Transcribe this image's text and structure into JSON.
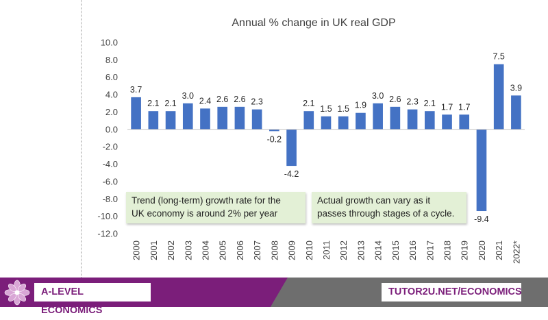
{
  "chart_data": {
    "type": "bar",
    "title": "Annual % change in UK real GDP",
    "categories": [
      "2000",
      "2001",
      "2002",
      "2003",
      "2004",
      "2005",
      "2006",
      "2007",
      "2008",
      "2009",
      "2010",
      "2011",
      "2012",
      "2013",
      "2014",
      "2015",
      "2016",
      "2017",
      "2018",
      "2019",
      "2020",
      "2021",
      "2022*"
    ],
    "values": [
      3.7,
      2.1,
      2.1,
      3.0,
      2.4,
      2.6,
      2.6,
      2.3,
      -0.2,
      -4.2,
      2.1,
      1.5,
      1.5,
      1.9,
      3.0,
      2.6,
      2.3,
      2.1,
      1.7,
      1.7,
      -9.4,
      7.5,
      3.9
    ],
    "data_labels": [
      "3.7",
      "2.1",
      "2.1",
      "3.0",
      "2.4",
      "2.6",
      "2.6",
      "2.3",
      "-0.2",
      "-4.2",
      "2.1",
      "1.5",
      "1.5",
      "1.9",
      "3.0",
      "2.6",
      "2.3",
      "2.1",
      "1.7",
      "1.7",
      "-9.4",
      "7.5",
      "3.9"
    ],
    "y_ticks": [
      "10.0",
      "8.0",
      "6.0",
      "4.0",
      "2.0",
      "0.0",
      "-2.0",
      "-4.0",
      "-6.0",
      "-8.0",
      "-10.0",
      "-12.0"
    ],
    "ylim": [
      -12,
      10
    ],
    "xlabel": "",
    "ylabel": "",
    "grid": false,
    "bar_color": "#4472c4"
  },
  "callouts": {
    "trend": "Trend (long-term) growth rate for the\nUK economy is around 2% per year",
    "actual": "Actual growth can vary as it\npasses through stages of a cycle."
  },
  "footer": {
    "left_label": "A-LEVEL ECONOMICS",
    "right_label": "TUTOR2U.NET/ECONOMICS",
    "purple_color": "#7b1e7a",
    "grey_color": "#6e6e6e"
  }
}
